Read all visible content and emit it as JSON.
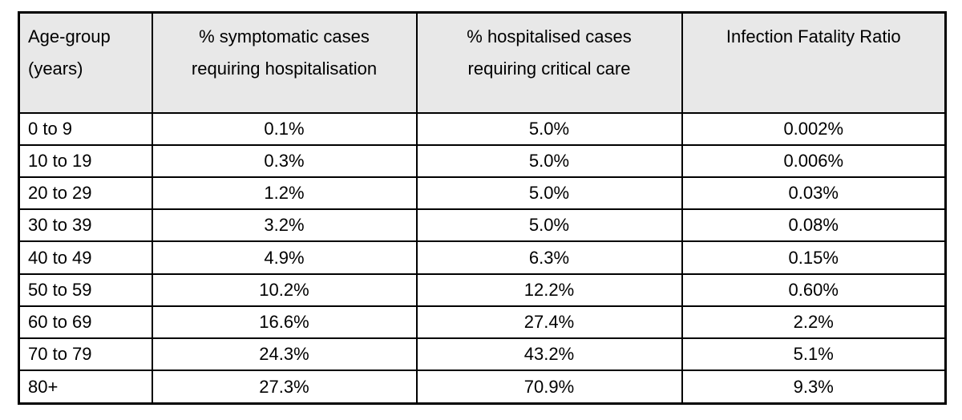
{
  "colors": {
    "header_bg": "#e8e8e8",
    "border": "#000000",
    "page_bg": "#ffffff",
    "text": "#000000"
  },
  "table": {
    "columns": [
      "Age-group\n(years)",
      "% symptomatic cases\nrequiring hospitalisation",
      "% hospitalised cases\nrequiring critical care",
      "Infection Fatality Ratio"
    ],
    "rows": [
      {
        "age": "0 to 9",
        "symptomatic": "0.1%",
        "critical": "5.0%",
        "ifr": "0.002%"
      },
      {
        "age": "10 to 19",
        "symptomatic": "0.3%",
        "critical": "5.0%",
        "ifr": "0.006%"
      },
      {
        "age": "20 to 29",
        "symptomatic": "1.2%",
        "critical": "5.0%",
        "ifr": "0.03%"
      },
      {
        "age": "30 to 39",
        "symptomatic": "3.2%",
        "critical": "5.0%",
        "ifr": "0.08%"
      },
      {
        "age": "40 to 49",
        "symptomatic": "4.9%",
        "critical": "6.3%",
        "ifr": "0.15%"
      },
      {
        "age": "50 to 59",
        "symptomatic": "10.2%",
        "critical": "12.2%",
        "ifr": "0.60%"
      },
      {
        "age": "60 to 69",
        "symptomatic": "16.6%",
        "critical": "27.4%",
        "ifr": "2.2%"
      },
      {
        "age": "70 to 79",
        "symptomatic": "24.3%",
        "critical": "43.2%",
        "ifr": "5.1%"
      },
      {
        "age": "80+",
        "symptomatic": "27.3%",
        "critical": "70.9%",
        "ifr": "9.3%"
      }
    ]
  },
  "chart_data": {
    "type": "table",
    "title": "",
    "columns": [
      "Age-group (years)",
      "% symptomatic cases requiring hospitalisation",
      "% hospitalised cases requiring critical care",
      "Infection Fatality Ratio"
    ],
    "rows": [
      [
        "0 to 9",
        "0.1%",
        "5.0%",
        "0.002%"
      ],
      [
        "10 to 19",
        "0.3%",
        "5.0%",
        "0.006%"
      ],
      [
        "20 to 29",
        "1.2%",
        "5.0%",
        "0.03%"
      ],
      [
        "30 to 39",
        "3.2%",
        "5.0%",
        "0.08%"
      ],
      [
        "40 to 49",
        "4.9%",
        "6.3%",
        "0.15%"
      ],
      [
        "50 to 59",
        "10.2%",
        "12.2%",
        "0.60%"
      ],
      [
        "60 to 69",
        "16.6%",
        "27.4%",
        "2.2%"
      ],
      [
        "70 to 79",
        "24.3%",
        "43.2%",
        "5.1%"
      ],
      [
        "80+",
        "27.3%",
        "70.9%",
        "9.3%"
      ]
    ]
  }
}
